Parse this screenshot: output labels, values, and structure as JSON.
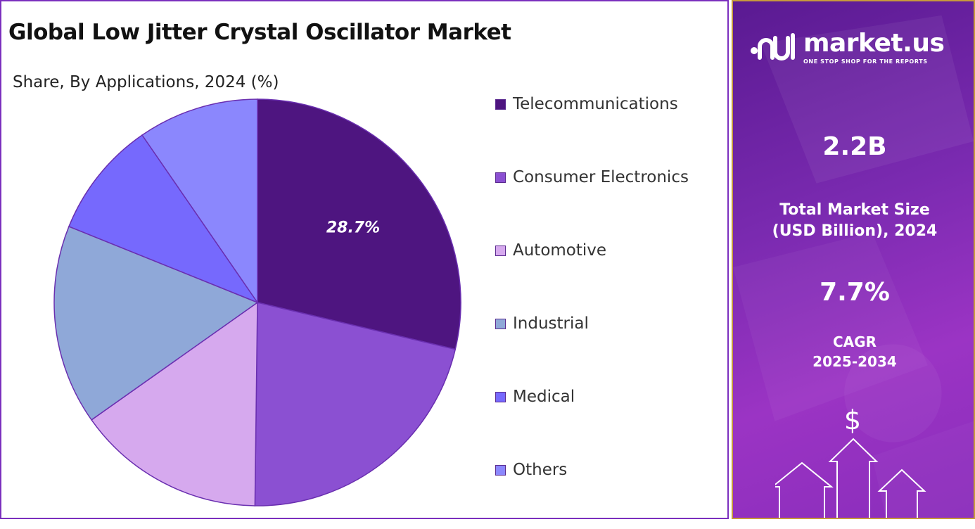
{
  "chart_data": {
    "type": "pie",
    "title": "Global Low Jitter Crystal Oscillator Market",
    "subtitle": "Share, By Applications, 2024 (%)",
    "categories": [
      "Telecommunications",
      "Consumer Electronics",
      "Automotive",
      "Industrial",
      "Medical",
      "Others"
    ],
    "values": [
      28.7,
      21.5,
      15.0,
      15.9,
      9.3,
      9.6
    ],
    "colors": [
      "#4e1580",
      "#8b50d2",
      "#d6a9ee",
      "#8fa8d8",
      "#7669fd",
      "#8b87fd"
    ],
    "data_labels": [
      "28.7%",
      "",
      "",
      "",
      "",
      ""
    ],
    "start_angle_deg": 0,
    "direction": "clockwise",
    "legend_position": "right"
  },
  "brand": {
    "name": "market.us",
    "tagline": "ONE STOP SHOP FOR THE REPORTS"
  },
  "stats": {
    "market_size_value": "2.2B",
    "market_size_label_line1": "Total Market Size",
    "market_size_label_line2": "(USD Billion), 2024",
    "cagr_value": "7.7%",
    "cagr_label_line1": "CAGR",
    "cagr_label_line2": "2025-2034"
  },
  "deco": {
    "currency_symbol": "$"
  }
}
